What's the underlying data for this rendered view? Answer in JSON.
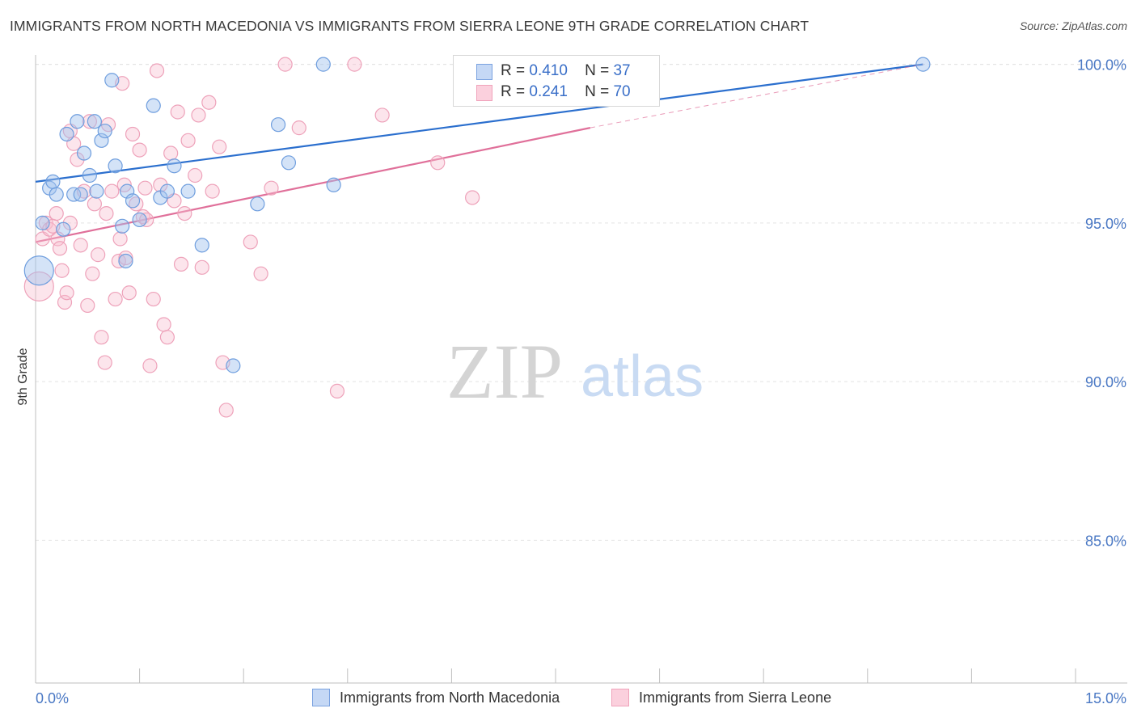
{
  "header": {
    "title": "IMMIGRANTS FROM NORTH MACEDONIA VS IMMIGRANTS FROM SIERRA LEONE 9TH GRADE CORRELATION CHART",
    "source": "Source: ZipAtlas.com"
  },
  "watermark": {
    "zip": "ZIP",
    "atlas": "atlas"
  },
  "legend": {
    "rows": [
      {
        "r_label": "R =",
        "r_value": "0.410",
        "n_label": "N =",
        "n_value": "37"
      },
      {
        "r_label": "R =",
        "r_value": "0.241",
        "n_label": "N =",
        "n_value": "70"
      }
    ]
  },
  "bottom_legend": {
    "series1": "Immigrants from North Macedonia",
    "series2": "Immigrants from Sierra Leone"
  },
  "chart_data": {
    "type": "scatter",
    "title": "IMMIGRANTS FROM NORTH MACEDONIA VS IMMIGRANTS FROM SIERRA LEONE 9TH GRADE CORRELATION CHART",
    "xlabel": "",
    "ylabel": "9th Grade",
    "xlim": [
      0,
      15
    ],
    "ylim": [
      80.5,
      100.5
    ],
    "x_tick_labels": [
      "0.0%",
      "15.0%"
    ],
    "y_ticks": [
      85,
      90,
      95,
      100
    ],
    "y_tick_labels": [
      "85.0%",
      "90.0%",
      "95.0%",
      "100.0%"
    ],
    "grid": true,
    "legend_placement": "top-center",
    "colors": {
      "series1": "#6f9ede",
      "series2": "#f1a5bc",
      "line1": "#2b6fce",
      "line2": "#e0709a"
    },
    "series": [
      {
        "name": "Immigrants from North Macedonia",
        "R": 0.41,
        "N": 37,
        "trend": {
          "x0": 0.0,
          "y0": 96.3,
          "x1": 12.8,
          "y1": 100.0
        },
        "points": [
          [
            0.1,
            95.0
          ],
          [
            0.2,
            96.1
          ],
          [
            0.25,
            96.3
          ],
          [
            0.3,
            95.9
          ],
          [
            0.4,
            94.8
          ],
          [
            0.45,
            97.8
          ],
          [
            0.55,
            95.9
          ],
          [
            0.6,
            98.2
          ],
          [
            0.65,
            95.9
          ],
          [
            0.7,
            97.2
          ],
          [
            0.78,
            96.5
          ],
          [
            0.85,
            98.2
          ],
          [
            0.88,
            96.0
          ],
          [
            0.95,
            97.6
          ],
          [
            1.0,
            97.9
          ],
          [
            1.1,
            99.5
          ],
          [
            1.15,
            96.8
          ],
          [
            1.25,
            94.9
          ],
          [
            1.3,
            93.8
          ],
          [
            1.32,
            96.0
          ],
          [
            1.4,
            95.7
          ],
          [
            1.5,
            95.1
          ],
          [
            1.7,
            98.7
          ],
          [
            1.8,
            95.8
          ],
          [
            1.9,
            96.0
          ],
          [
            2.0,
            96.8
          ],
          [
            2.2,
            96.0
          ],
          [
            2.4,
            94.3
          ],
          [
            2.85,
            90.5
          ],
          [
            3.2,
            95.6
          ],
          [
            3.5,
            98.1
          ],
          [
            3.65,
            96.9
          ],
          [
            4.15,
            100.0
          ],
          [
            4.3,
            96.2
          ],
          [
            8.05,
            100.0
          ],
          [
            12.8,
            100.0
          ],
          [
            0.05,
            93.5
          ]
        ]
      },
      {
        "name": "Immigrants from Sierra Leone",
        "R": 0.241,
        "N": 70,
        "trend": {
          "x0": 0.0,
          "y0": 94.4,
          "x1": 8.0,
          "y1": 98.0
        },
        "points": [
          [
            0.05,
            93.0
          ],
          [
            0.1,
            94.5
          ],
          [
            0.15,
            95.0
          ],
          [
            0.2,
            94.8
          ],
          [
            0.25,
            94.9
          ],
          [
            0.3,
            95.3
          ],
          [
            0.32,
            94.5
          ],
          [
            0.35,
            94.2
          ],
          [
            0.38,
            93.5
          ],
          [
            0.42,
            92.5
          ],
          [
            0.45,
            92.8
          ],
          [
            0.5,
            95.0
          ],
          [
            0.55,
            97.5
          ],
          [
            0.6,
            97.0
          ],
          [
            0.65,
            94.3
          ],
          [
            0.7,
            96.0
          ],
          [
            0.75,
            92.4
          ],
          [
            0.78,
            98.2
          ],
          [
            0.82,
            93.4
          ],
          [
            0.85,
            95.6
          ],
          [
            0.9,
            94.0
          ],
          [
            0.95,
            91.4
          ],
          [
            1.0,
            90.6
          ],
          [
            1.02,
            95.3
          ],
          [
            1.05,
            98.1
          ],
          [
            1.1,
            96.0
          ],
          [
            1.15,
            92.6
          ],
          [
            1.2,
            93.8
          ],
          [
            1.22,
            94.5
          ],
          [
            1.25,
            99.4
          ],
          [
            1.28,
            96.2
          ],
          [
            1.3,
            93.9
          ],
          [
            1.35,
            92.8
          ],
          [
            1.4,
            97.8
          ],
          [
            1.45,
            95.6
          ],
          [
            1.5,
            97.3
          ],
          [
            1.55,
            95.2
          ],
          [
            1.58,
            96.1
          ],
          [
            1.6,
            95.1
          ],
          [
            1.65,
            90.5
          ],
          [
            1.7,
            92.6
          ],
          [
            1.75,
            99.8
          ],
          [
            1.8,
            96.2
          ],
          [
            1.85,
            91.8
          ],
          [
            1.9,
            91.4
          ],
          [
            1.95,
            97.2
          ],
          [
            2.0,
            95.7
          ],
          [
            2.05,
            98.5
          ],
          [
            2.1,
            93.7
          ],
          [
            2.15,
            95.3
          ],
          [
            2.2,
            97.6
          ],
          [
            2.3,
            96.5
          ],
          [
            2.35,
            98.4
          ],
          [
            2.4,
            93.6
          ],
          [
            2.5,
            98.8
          ],
          [
            2.55,
            96.0
          ],
          [
            2.65,
            97.4
          ],
          [
            2.7,
            90.6
          ],
          [
            2.75,
            89.1
          ],
          [
            3.1,
            94.4
          ],
          [
            3.25,
            93.4
          ],
          [
            3.4,
            96.1
          ],
          [
            3.6,
            100.0
          ],
          [
            3.8,
            98.0
          ],
          [
            4.35,
            89.7
          ],
          [
            4.6,
            100.0
          ],
          [
            5.0,
            98.4
          ],
          [
            5.8,
            96.9
          ],
          [
            6.3,
            95.8
          ],
          [
            0.5,
            97.9
          ]
        ]
      }
    ]
  }
}
